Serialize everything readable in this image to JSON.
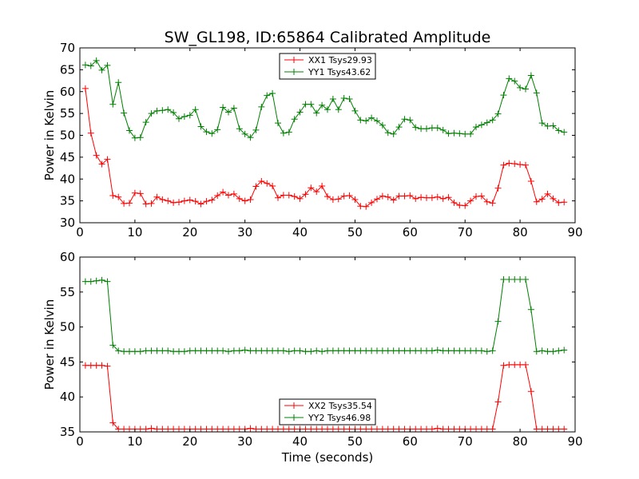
{
  "chart_data": {
    "type": "line",
    "title": "SW_GL198, ID:65864 Calibrated Amplitude",
    "xlabel": "Time (seconds)",
    "grid": false,
    "colors": {
      "XX": "#ff0000",
      "YY": "#008000"
    },
    "subplots": [
      {
        "ylabel": "Power in Kelvin",
        "xlim": [
          0,
          90
        ],
        "ylim": [
          30,
          70
        ],
        "xticks": [
          "0",
          "10",
          "20",
          "30",
          "40",
          "50",
          "60",
          "70",
          "80",
          "90"
        ],
        "yticks": [
          "30",
          "35",
          "40",
          "45",
          "50",
          "55",
          "60",
          "65",
          "70"
        ],
        "legend_position": "top-center",
        "series": [
          {
            "name": "XX1 Tsys29.93",
            "color": "#ff0000",
            "x": [
              1,
              2,
              3,
              4,
              5,
              6,
              7,
              8,
              9,
              10,
              11,
              12,
              13,
              14,
              15,
              16,
              17,
              18,
              19,
              20,
              21,
              22,
              23,
              24,
              25,
              26,
              27,
              28,
              29,
              30,
              31,
              32,
              33,
              34,
              35,
              36,
              37,
              38,
              39,
              40,
              41,
              42,
              43,
              44,
              45,
              46,
              47,
              48,
              49,
              50,
              51,
              52,
              53,
              54,
              55,
              56,
              57,
              58,
              59,
              60,
              61,
              62,
              63,
              64,
              65,
              66,
              67,
              68,
              69,
              70,
              71,
              72,
              73,
              74,
              75,
              76,
              77,
              78,
              79,
              80,
              81,
              82,
              83,
              84,
              85,
              86,
              87,
              88
            ],
            "y": [
              60.7,
              50.5,
              45.4,
              43.4,
              44.5,
              36.2,
              35.9,
              34.4,
              34.5,
              36.8,
              36.7,
              34.3,
              34.4,
              35.9,
              35.3,
              35.0,
              34.6,
              34.7,
              35.0,
              35.2,
              34.9,
              34.3,
              34.9,
              35.2,
              36.2,
              37.0,
              36.3,
              36.6,
              35.5,
              35.0,
              35.3,
              38.3,
              39.5,
              39.0,
              38.4,
              35.7,
              36.3,
              36.3,
              36.0,
              35.5,
              36.5,
              38.0,
              37.1,
              38.4,
              36.0,
              35.3,
              35.4,
              36.1,
              36.2,
              35.3,
              33.8,
              33.7,
              34.6,
              35.4,
              36.1,
              35.9,
              35.2,
              36.1,
              36.1,
              36.2,
              35.5,
              35.8,
              35.7,
              35.7,
              35.9,
              35.5,
              35.8,
              34.6,
              34.0,
              33.9,
              35.0,
              36.0,
              36.1,
              34.8,
              34.5,
              37.9,
              43.2,
              43.6,
              43.5,
              43.3,
              43.2,
              39.5,
              34.8,
              35.4,
              36.6,
              35.5,
              34.6,
              34.7
            ]
          },
          {
            "name": "YY1 Tsys43.62",
            "color": "#008000",
            "x": [
              1,
              2,
              3,
              4,
              5,
              6,
              7,
              8,
              9,
              10,
              11,
              12,
              13,
              14,
              15,
              16,
              17,
              18,
              19,
              20,
              21,
              22,
              23,
              24,
              25,
              26,
              27,
              28,
              29,
              30,
              31,
              32,
              33,
              34,
              35,
              36,
              37,
              38,
              39,
              40,
              41,
              42,
              43,
              44,
              45,
              46,
              47,
              48,
              49,
              50,
              51,
              52,
              53,
              54,
              55,
              56,
              57,
              58,
              59,
              60,
              61,
              62,
              63,
              64,
              65,
              66,
              67,
              68,
              69,
              70,
              71,
              72,
              73,
              74,
              75,
              76,
              77,
              78,
              79,
              80,
              81,
              82,
              83,
              84,
              85,
              86,
              87,
              88
            ],
            "y": [
              66.1,
              65.9,
              67.1,
              64.9,
              66.0,
              57.1,
              62.1,
              55.1,
              51.1,
              49.4,
              49.5,
              53.0,
              55.0,
              55.6,
              55.7,
              55.9,
              55.2,
              53.8,
              54.3,
              54.6,
              55.9,
              52.0,
              50.8,
              50.4,
              51.3,
              56.4,
              55.3,
              56.2,
              51.5,
              50.3,
              49.5,
              51.2,
              56.5,
              59.1,
              59.6,
              52.8,
              50.5,
              50.7,
              53.7,
              55.3,
              57.1,
              57.1,
              55.1,
              56.9,
              55.9,
              58.3,
              55.9,
              58.5,
              58.3,
              55.6,
              53.5,
              53.3,
              54.0,
              53.3,
              52.3,
              50.6,
              50.3,
              51.9,
              53.7,
              53.5,
              51.8,
              51.5,
              51.5,
              51.7,
              51.7,
              51.2,
              50.4,
              50.5,
              50.4,
              50.3,
              50.3,
              51.9,
              52.4,
              52.9,
              53.5,
              54.9,
              59.2,
              63.0,
              62.4,
              60.9,
              60.6,
              63.7,
              59.7,
              52.8,
              52.1,
              52.2,
              51.1,
              50.7
            ]
          }
        ]
      },
      {
        "ylabel": "Power in Kelvin",
        "xlim": [
          0,
          90
        ],
        "ylim": [
          35,
          60
        ],
        "xticks": [
          "0",
          "10",
          "20",
          "30",
          "40",
          "50",
          "60",
          "70",
          "80",
          "90"
        ],
        "yticks": [
          "35",
          "40",
          "45",
          "50",
          "55",
          "60"
        ],
        "legend_position": "bottom-center",
        "series": [
          {
            "name": "XX2 Tsys35.54",
            "color": "#ff0000",
            "x": [
              1,
              2,
              3,
              4,
              5,
              6,
              7,
              8,
              9,
              10,
              11,
              12,
              13,
              14,
              15,
              16,
              17,
              18,
              19,
              20,
              21,
              22,
              23,
              24,
              25,
              26,
              27,
              28,
              29,
              30,
              31,
              32,
              33,
              34,
              35,
              36,
              37,
              38,
              39,
              40,
              41,
              42,
              43,
              44,
              45,
              46,
              47,
              48,
              49,
              50,
              51,
              52,
              53,
              54,
              55,
              56,
              57,
              58,
              59,
              60,
              61,
              62,
              63,
              64,
              65,
              66,
              67,
              68,
              69,
              70,
              71,
              72,
              73,
              74,
              75,
              76,
              77,
              78,
              79,
              80,
              81,
              82,
              83,
              84,
              85,
              86,
              87,
              88
            ],
            "y": [
              44.5,
              44.5,
              44.5,
              44.5,
              44.4,
              36.3,
              35.4,
              35.4,
              35.4,
              35.4,
              35.4,
              35.4,
              35.5,
              35.4,
              35.4,
              35.4,
              35.4,
              35.4,
              35.4,
              35.4,
              35.4,
              35.4,
              35.4,
              35.4,
              35.4,
              35.4,
              35.4,
              35.4,
              35.4,
              35.4,
              35.5,
              35.4,
              35.4,
              35.4,
              35.4,
              35.4,
              35.4,
              35.4,
              35.4,
              35.4,
              35.4,
              35.4,
              35.4,
              35.4,
              35.4,
              35.4,
              35.4,
              35.4,
              35.4,
              35.4,
              35.4,
              35.4,
              35.4,
              35.4,
              35.4,
              35.4,
              35.4,
              35.4,
              35.4,
              35.4,
              35.4,
              35.4,
              35.4,
              35.4,
              35.5,
              35.4,
              35.4,
              35.4,
              35.4,
              35.4,
              35.4,
              35.4,
              35.4,
              35.4,
              35.4,
              39.3,
              44.5,
              44.6,
              44.6,
              44.6,
              44.6,
              40.8,
              35.4,
              35.4,
              35.4,
              35.4,
              35.4,
              35.4
            ]
          },
          {
            "name": "YY2 Tsys46.98",
            "color": "#008000",
            "x": [
              1,
              2,
              3,
              4,
              5,
              6,
              7,
              8,
              9,
              10,
              11,
              12,
              13,
              14,
              15,
              16,
              17,
              18,
              19,
              20,
              21,
              22,
              23,
              24,
              25,
              26,
              27,
              28,
              29,
              30,
              31,
              32,
              33,
              34,
              35,
              36,
              37,
              38,
              39,
              40,
              41,
              42,
              43,
              44,
              45,
              46,
              47,
              48,
              49,
              50,
              51,
              52,
              53,
              54,
              55,
              56,
              57,
              58,
              59,
              60,
              61,
              62,
              63,
              64,
              65,
              66,
              67,
              68,
              69,
              70,
              71,
              72,
              73,
              74,
              75,
              76,
              77,
              78,
              79,
              80,
              81,
              82,
              83,
              84,
              85,
              86,
              87,
              88
            ],
            "y": [
              56.5,
              56.5,
              56.6,
              56.7,
              56.5,
              47.4,
              46.6,
              46.5,
              46.5,
              46.5,
              46.5,
              46.6,
              46.6,
              46.6,
              46.6,
              46.6,
              46.5,
              46.5,
              46.5,
              46.6,
              46.6,
              46.6,
              46.6,
              46.6,
              46.6,
              46.6,
              46.5,
              46.6,
              46.6,
              46.7,
              46.6,
              46.6,
              46.6,
              46.6,
              46.6,
              46.6,
              46.6,
              46.5,
              46.6,
              46.6,
              46.5,
              46.5,
              46.6,
              46.5,
              46.6,
              46.6,
              46.6,
              46.6,
              46.6,
              46.6,
              46.6,
              46.6,
              46.6,
              46.6,
              46.6,
              46.6,
              46.6,
              46.6,
              46.6,
              46.6,
              46.6,
              46.6,
              46.6,
              46.6,
              46.7,
              46.6,
              46.6,
              46.6,
              46.6,
              46.6,
              46.6,
              46.6,
              46.6,
              46.5,
              46.6,
              50.8,
              56.8,
              56.8,
              56.8,
              56.8,
              56.8,
              52.5,
              46.5,
              46.6,
              46.5,
              46.5,
              46.6,
              46.7
            ]
          }
        ]
      }
    ]
  }
}
